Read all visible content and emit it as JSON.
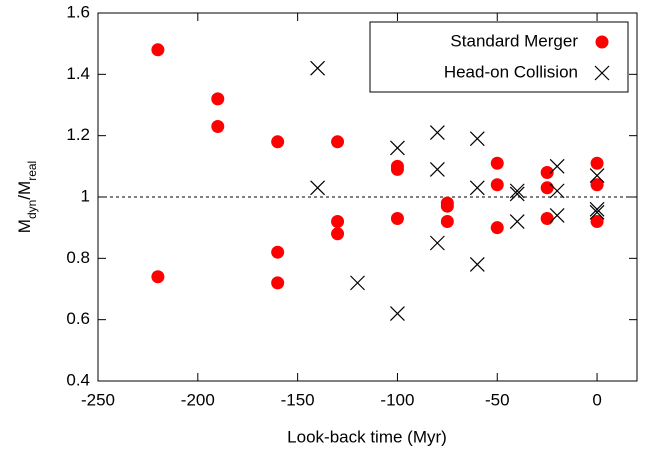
{
  "chart_data": {
    "type": "scatter",
    "x_label": "Look-back time (Myr)",
    "y_label": [
      "M",
      "dyn",
      "/M",
      "real"
    ],
    "xlim": [
      -250,
      20
    ],
    "xticks": [
      -250,
      -200,
      -150,
      -100,
      -50,
      0
    ],
    "ylim": [
      0.4,
      1.6
    ],
    "yticks": [
      0.4,
      0.6,
      0.8,
      1,
      1.2,
      1.4,
      1.6
    ],
    "hline": 1,
    "legend": "upper right",
    "series": [
      {
        "name": "Standard Merger",
        "color": "#ff0000",
        "marker": "circle",
        "x": [
          -220,
          -220,
          -190,
          -190,
          -160,
          -160,
          -160,
          -130,
          -130,
          -130,
          -100,
          -100,
          -100,
          -75,
          -75,
          -75,
          -50,
          -50,
          -50,
          -25,
          -25,
          -25,
          0,
          0,
          0
        ],
        "y": [
          1.48,
          0.74,
          1.32,
          1.23,
          1.18,
          0.82,
          0.72,
          1.18,
          0.92,
          0.88,
          1.1,
          1.09,
          0.93,
          0.98,
          0.97,
          0.92,
          1.11,
          1.04,
          0.9,
          1.08,
          1.03,
          0.93,
          1.11,
          1.04,
          0.92
        ]
      },
      {
        "name": "Head-on Collision",
        "color": "#000000",
        "marker": "cross",
        "x": [
          -140,
          -140,
          -120,
          -100,
          -100,
          -80,
          -80,
          -80,
          -60,
          -60,
          -60,
          -40,
          -40,
          -40,
          -20,
          -20,
          -20,
          0,
          0,
          0
        ],
        "y": [
          1.42,
          1.03,
          0.72,
          1.16,
          0.62,
          1.21,
          1.09,
          0.85,
          1.19,
          1.03,
          0.78,
          1.02,
          1.01,
          0.92,
          1.1,
          1.02,
          0.94,
          1.07,
          0.96,
          0.95
        ]
      }
    ]
  }
}
